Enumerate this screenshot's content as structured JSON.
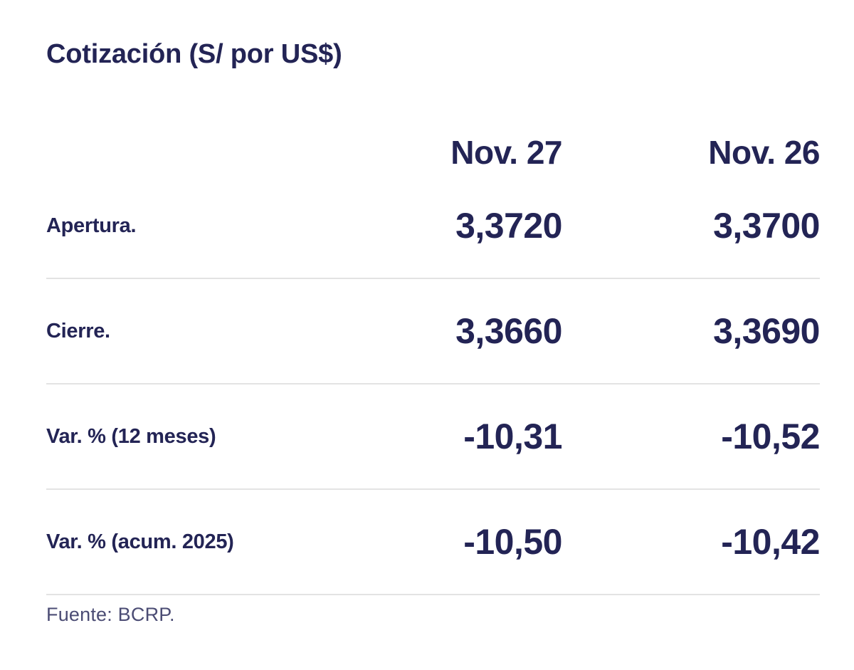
{
  "colors": {
    "text-navy": "#232455",
    "source-text": "#4b4c74",
    "divider": "#e3e3e3",
    "background": "#ffffff"
  },
  "chart_data": {
    "type": "table",
    "title": "Cotización (S/ por US$)",
    "columns": [
      "",
      "Nov. 27",
      "Nov. 26"
    ],
    "rows": [
      {
        "label": "Apertura.",
        "values": [
          "3,3720",
          "3,3700"
        ]
      },
      {
        "label": "Cierre.",
        "values": [
          "3,3660",
          "3,3690"
        ]
      },
      {
        "label": "Var. % (12 meses)",
        "values": [
          "-10,31",
          "-10,52"
        ]
      },
      {
        "label": "Var. % (acum. 2025)",
        "values": [
          "-10,50",
          "-10,42"
        ]
      }
    ],
    "source": "Fuente: BCRP."
  }
}
